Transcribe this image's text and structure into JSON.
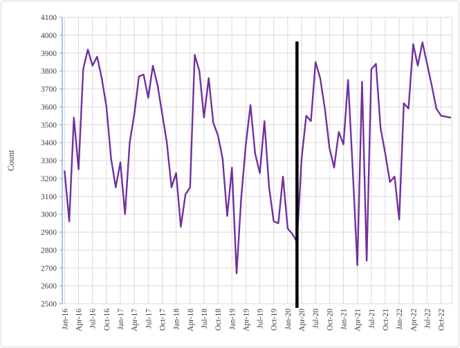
{
  "chart": {
    "ylabel": "Count"
  },
  "chart_data": {
    "type": "line",
    "title": "",
    "xlabel": "",
    "ylabel": "Count",
    "ylim": [
      2500,
      4100
    ],
    "ytick_step": 100,
    "grid": true,
    "legend": "none",
    "line_color": "#7030a0",
    "axis_color": "#8faadc",
    "gridline_color": "#d9d9d9",
    "text_color": "#3f3f3f",
    "x": [
      "Jan-16",
      "Feb-16",
      "Mar-16",
      "Apr-16",
      "May-16",
      "Jun-16",
      "Jul-16",
      "Aug-16",
      "Sep-16",
      "Oct-16",
      "Nov-16",
      "Dec-16",
      "Jan-17",
      "Feb-17",
      "Mar-17",
      "Apr-17",
      "May-17",
      "Jun-17",
      "Jul-17",
      "Aug-17",
      "Sep-17",
      "Oct-17",
      "Nov-17",
      "Dec-17",
      "Jan-18",
      "Feb-18",
      "Mar-18",
      "Apr-18",
      "May-18",
      "Jun-18",
      "Jul-18",
      "Aug-18",
      "Sep-18",
      "Oct-18",
      "Nov-18",
      "Dec-18",
      "Jan-19",
      "Feb-19",
      "Mar-19",
      "Apr-19",
      "May-19",
      "Jun-19",
      "Jul-19",
      "Aug-19",
      "Sep-19",
      "Oct-19",
      "Nov-19",
      "Dec-19",
      "Jan-20",
      "Feb-20",
      "Mar-20",
      "Apr-20",
      "May-20",
      "Jun-20",
      "Jul-20",
      "Aug-20",
      "Sep-20",
      "Oct-20",
      "Nov-20",
      "Dec-20",
      "Jan-21",
      "Feb-21",
      "Mar-21",
      "Apr-21",
      "May-21",
      "Jun-21",
      "Jul-21",
      "Aug-21",
      "Sep-21",
      "Oct-21",
      "Nov-21",
      "Dec-21",
      "Jan-22",
      "Feb-22",
      "Mar-22",
      "Apr-22",
      "May-22",
      "Jun-22",
      "Jul-22",
      "Aug-22",
      "Sep-22",
      "Oct-22",
      "Nov-22",
      "Dec-22"
    ],
    "values": [
      3240,
      2960,
      3540,
      3250,
      3810,
      3920,
      3830,
      3880,
      3760,
      3600,
      3310,
      3150,
      3290,
      3000,
      3400,
      3560,
      3770,
      3780,
      3650,
      3830,
      3720,
      3560,
      3400,
      3150,
      3230,
      2930,
      3110,
      3150,
      3890,
      3800,
      3540,
      3760,
      3510,
      3440,
      3310,
      2990,
      3260,
      2670,
      3090,
      3390,
      3610,
      3340,
      3230,
      3520,
      3150,
      2960,
      2950,
      3210,
      2920,
      2890,
      2845,
      3310,
      3550,
      3520,
      3850,
      3760,
      3590,
      3370,
      3260,
      3460,
      3390,
      3750,
      3250,
      2715,
      3740,
      2740,
      3810,
      3840,
      3480,
      3340,
      3180,
      3210,
      2970,
      3620,
      3590,
      3950,
      3830,
      3960,
      3840,
      3720,
      3590,
      3550,
      3545,
      3540
    ],
    "xtick_labels": [
      "Jan-16",
      "Apr-16",
      "Jul-16",
      "Oct-16",
      "Jan-17",
      "Apr-17",
      "Jul-17",
      "Oct-17",
      "Jan-18",
      "Apr-18",
      "Jul-18",
      "Oct-18",
      "Jan-19",
      "Apr-19",
      "Jul-19",
      "Oct-19",
      "Jan-20",
      "Apr-20",
      "Jul-20",
      "Oct-20",
      "Jan-21",
      "Apr-21",
      "Jul-21",
      "Oct-21",
      "Jan-22",
      "Apr-22",
      "Jul-22",
      "Oct-22"
    ],
    "annotation_vline": {
      "x_label": "Mar-20",
      "x_index": 50,
      "color": "#000000",
      "width": 4.5
    }
  }
}
